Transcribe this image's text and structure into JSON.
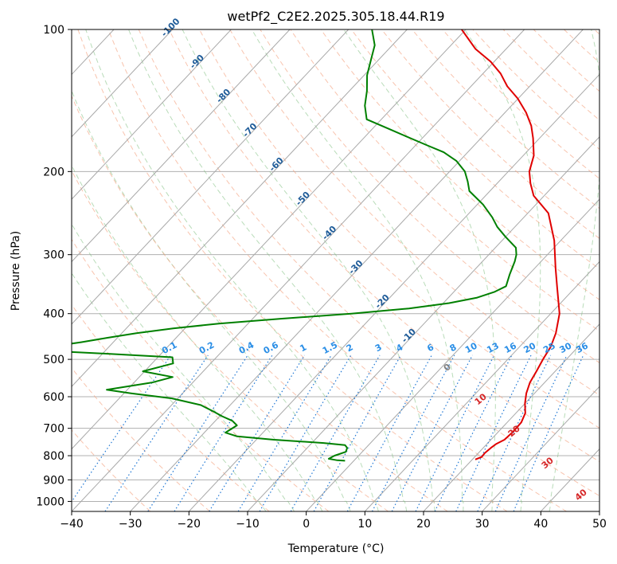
{
  "chart_data": {
    "type": "line",
    "subtype": "skew-T log-P diagram",
    "title": "wetPf2_C2E2.2025.305.18.44.R19",
    "xlabel": "Temperature (°C)",
    "ylabel": "Pressure (hPa)",
    "xlim": [
      -40,
      50
    ],
    "ylim": [
      1050,
      100
    ],
    "x_ticks": [
      -40,
      -30,
      -20,
      -10,
      0,
      10,
      20,
      30,
      40,
      50
    ],
    "y_ticks": [
      100,
      200,
      300,
      400,
      500,
      600,
      700,
      800,
      900,
      1000
    ],
    "grid": true,
    "isotherm_labels": [
      -100,
      -90,
      -80,
      -70,
      -60,
      -50,
      -40,
      -30,
      -20,
      -10
    ],
    "mixing_ratio_labels": [
      "0.1",
      "0.2",
      "0.4",
      "0.6",
      "1",
      "1.5",
      "2",
      "3",
      "4",
      "6",
      "8",
      "10",
      "13",
      "16",
      "20",
      "25",
      "30",
      "36"
    ],
    "dry_adiabat_labels": [
      "0",
      "10",
      "20",
      "30",
      "40"
    ],
    "series": [
      {
        "name": "Temperature",
        "color": "#e00000",
        "points": [
          [
            20.5,
            815
          ],
          [
            21.2,
            805
          ],
          [
            21.1,
            790
          ],
          [
            21.3,
            770
          ],
          [
            21.6,
            755
          ],
          [
            22.3,
            740
          ],
          [
            22.5,
            710
          ],
          [
            22.4,
            680
          ],
          [
            21.6,
            650
          ],
          [
            20.0,
            620
          ],
          [
            18.6,
            590
          ],
          [
            17.5,
            560
          ],
          [
            16.8,
            530
          ],
          [
            16.0,
            500
          ],
          [
            15.3,
            470
          ],
          [
            14.0,
            440
          ],
          [
            11.5,
            400
          ],
          [
            6.7,
            350
          ],
          [
            3.5,
            320
          ],
          [
            -1.1,
            280
          ],
          [
            -6.5,
            245
          ],
          [
            -11.8,
            225
          ],
          [
            -14.3,
            212
          ],
          [
            -16.4,
            200
          ],
          [
            -18.2,
            185
          ],
          [
            -21.1,
            170
          ],
          [
            -23.4,
            160
          ],
          [
            -26.4,
            150
          ],
          [
            -30.1,
            140
          ],
          [
            -33.8,
            132
          ],
          [
            -37.0,
            124
          ],
          [
            -40.6,
            117
          ],
          [
            -45.2,
            110
          ],
          [
            -50.7,
            100
          ]
        ]
      },
      {
        "name": "Dewpoint",
        "color": "#008000",
        "points": [
          [
            -1.5,
            820
          ],
          [
            -2.9,
            818
          ],
          [
            -4.6,
            812
          ],
          [
            -4.1,
            800
          ],
          [
            -2.8,
            785
          ],
          [
            -3.2,
            770
          ],
          [
            -4.0,
            760
          ],
          [
            -8.0,
            752
          ],
          [
            -17.0,
            740
          ],
          [
            -23.8,
            728
          ],
          [
            -26.4,
            715
          ],
          [
            -25.6,
            690
          ],
          [
            -27.1,
            675
          ],
          [
            -29.6,
            660
          ],
          [
            -31.8,
            645
          ],
          [
            -35.0,
            625
          ],
          [
            -41.0,
            605
          ],
          [
            -48.8,
            590
          ],
          [
            -53.5,
            580
          ],
          [
            -47.0,
            560
          ],
          [
            -44.3,
            545
          ],
          [
            -50.3,
            530
          ],
          [
            -46.4,
            510
          ],
          [
            -47.5,
            495
          ],
          [
            -60.0,
            486
          ],
          [
            -77.0,
            475
          ],
          [
            -70.0,
            470
          ],
          [
            -65.5,
            460
          ],
          [
            -61.7,
            450
          ],
          [
            -57.5,
            440
          ],
          [
            -52.0,
            430
          ],
          [
            -45.0,
            420
          ],
          [
            -35.0,
            410
          ],
          [
            -24.0,
            400
          ],
          [
            -15.0,
            390
          ],
          [
            -9.0,
            380
          ],
          [
            -5.1,
            370
          ],
          [
            -3.1,
            360
          ],
          [
            -2.0,
            350
          ],
          [
            -3.3,
            330
          ],
          [
            -4.5,
            310
          ],
          [
            -5.3,
            300
          ],
          [
            -6.5,
            290
          ],
          [
            -10.0,
            275
          ],
          [
            -13.0,
            262
          ],
          [
            -15.4,
            250
          ],
          [
            -19.0,
            235
          ],
          [
            -23.5,
            220
          ],
          [
            -25.3,
            210
          ],
          [
            -27.4,
            200
          ],
          [
            -30.5,
            190
          ],
          [
            -34.1,
            182
          ],
          [
            -38.0,
            176
          ],
          [
            -42.0,
            170
          ],
          [
            -47.5,
            162
          ],
          [
            -52.5,
            155
          ],
          [
            -55.0,
            145
          ],
          [
            -57.0,
            135
          ],
          [
            -59.5,
            125
          ],
          [
            -61.5,
            115
          ],
          [
            -63.0,
            108
          ],
          [
            -66.0,
            100
          ]
        ]
      }
    ]
  }
}
